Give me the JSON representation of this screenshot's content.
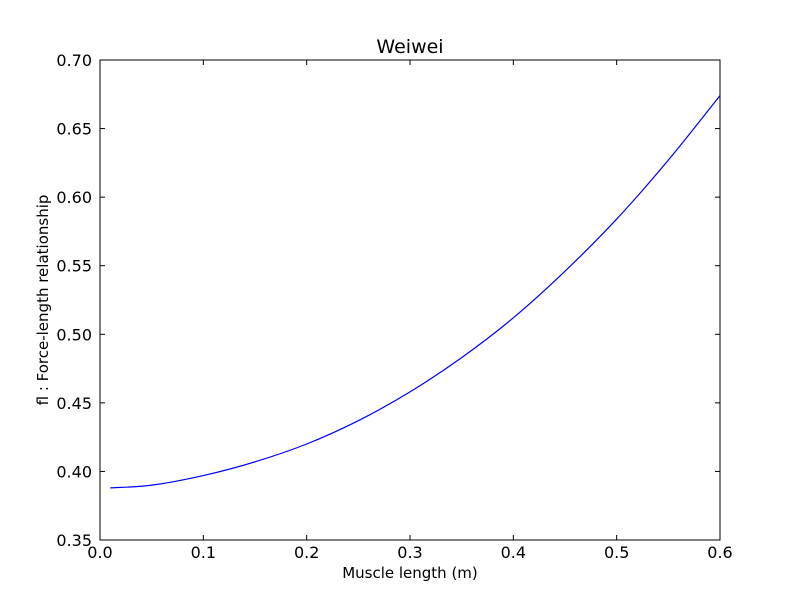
{
  "chart_data": {
    "type": "line",
    "title": "Weiwei",
    "xlabel": "Muscle length (m)",
    "ylabel": "fl : Force-length relationship",
    "xlim": [
      0.0,
      0.6
    ],
    "ylim": [
      0.35,
      0.7
    ],
    "xticks": [
      0.0,
      0.1,
      0.2,
      0.3,
      0.4,
      0.5,
      0.6
    ],
    "yticks": [
      0.35,
      0.4,
      0.45,
      0.5,
      0.55,
      0.6,
      0.65,
      0.7
    ],
    "xtick_labels": [
      "0.0",
      "0.1",
      "0.2",
      "0.3",
      "0.4",
      "0.5",
      "0.6"
    ],
    "ytick_labels": [
      "0.35",
      "0.40",
      "0.45",
      "0.50",
      "0.55",
      "0.60",
      "0.65",
      "0.70"
    ],
    "grid": false,
    "series": [
      {
        "color": "#0000ff",
        "x": [
          0.01,
          0.05,
          0.1,
          0.15,
          0.2,
          0.25,
          0.3,
          0.35,
          0.4,
          0.45,
          0.5,
          0.55,
          0.6
        ],
        "y": [
          0.388,
          0.39,
          0.397,
          0.407,
          0.42,
          0.437,
          0.458,
          0.483,
          0.512,
          0.546,
          0.584,
          0.627,
          0.674
        ]
      }
    ]
  }
}
